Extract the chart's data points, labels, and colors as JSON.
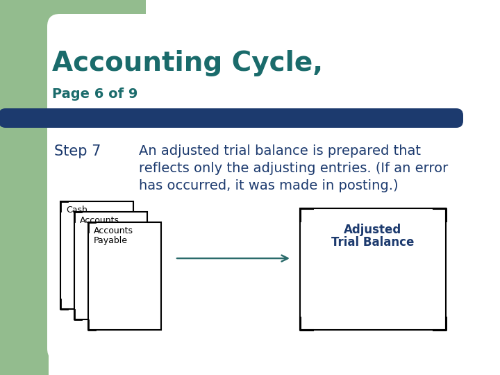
{
  "bg_color": "#ffffff",
  "green_sidebar_color": "#93bc8e",
  "dark_teal_title": "#1a6b6b",
  "dark_blue_bar": "#1c3a6e",
  "dark_blue_text": "#1c3a6e",
  "title_main": "Accounting Cycle,",
  "title_sub": "Page 6 of 9",
  "step_label": "Step 7",
  "step_text_line1": "An adjusted trial balance is prepared that",
  "step_text_line2": "reflects only the adjusting entries. (If an error",
  "step_text_line3": "has occurred, it was made in posting.)",
  "box1_label": "Cash",
  "box2_label": "Accounts",
  "box3_line1": "Accounts",
  "box3_line2": "Payable",
  "atb_label_line1": "Adjusted",
  "atb_label_line2": "Trial Balance"
}
